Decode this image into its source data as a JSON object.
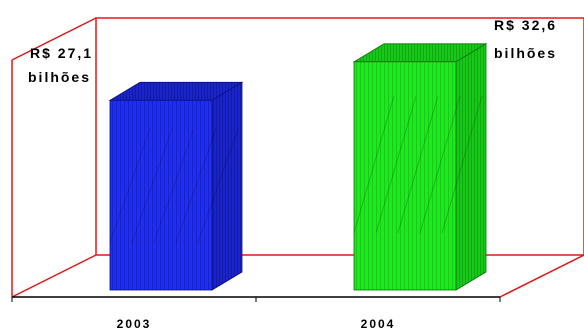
{
  "chart_data": {
    "type": "bar",
    "categories": [
      "2003",
      "2004"
    ],
    "values": [
      27.1,
      32.6
    ],
    "data_labels": [
      [
        "R$ 27,1",
        "bilhões"
      ],
      [
        "R$ 32,6",
        "bilhões"
      ]
    ],
    "bar_colors": [
      "#1f2ff0",
      "#1ee81e"
    ],
    "frame_color": "#e01818",
    "style": "3d",
    "grid": false,
    "legend": "none"
  }
}
